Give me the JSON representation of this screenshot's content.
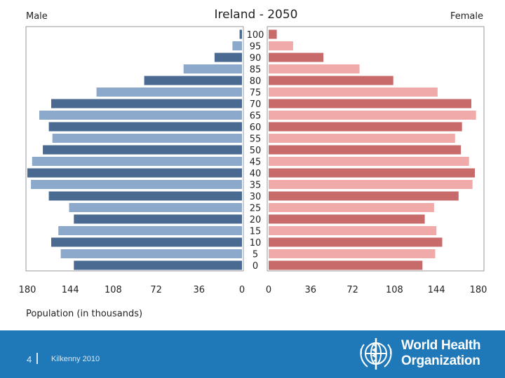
{
  "chart_data": {
    "type": "population-pyramid",
    "title": "Ireland - 2050",
    "left_label": "Male",
    "right_label": "Female",
    "xlabel": "Population (in thousands)",
    "xlim": [
      0,
      180
    ],
    "x_ticks": [
      "180",
      "144",
      "108",
      "72",
      "36",
      "0"
    ],
    "x_ticks_right": [
      "0",
      "36",
      "72",
      "108",
      "144",
      "180"
    ],
    "age_labels": [
      "0",
      "5",
      "10",
      "15",
      "20",
      "25",
      "30",
      "35",
      "40",
      "45",
      "50",
      "55",
      "60",
      "65",
      "70",
      "75",
      "80",
      "85",
      "90",
      "95",
      "100"
    ],
    "series": [
      {
        "name": "Male",
        "values": [
          141,
          152,
          160,
          154,
          141,
          145,
          162,
          177,
          180,
          176,
          167,
          159,
          162,
          170,
          160,
          122,
          82,
          49,
          23,
          8,
          2
        ]
      },
      {
        "name": "Female",
        "values": [
          132,
          143,
          149,
          144,
          134,
          142,
          163,
          175,
          177,
          172,
          165,
          160,
          166,
          178,
          174,
          145,
          107,
          78,
          47,
          21,
          7
        ]
      }
    ],
    "colors": {
      "male_dark": "#4a6a92",
      "male_light": "#8ca9cc",
      "female_dark": "#c96a6a",
      "female_light": "#f1aaaa",
      "frame": "#999999"
    }
  },
  "footer": {
    "slide_number": "4",
    "text": "Kilkenny 2010",
    "org_line1": "World Health",
    "org_line2": "Organization",
    "background": "#1f78b8"
  }
}
